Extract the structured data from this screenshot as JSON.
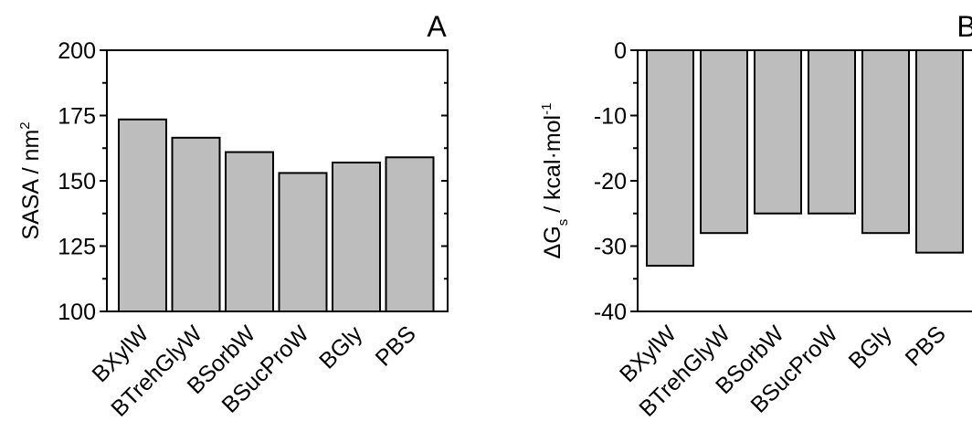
{
  "chart_data": [
    {
      "type": "bar",
      "panel_label": "A",
      "categories": [
        "BXylW",
        "BTrehGlyW",
        "BSorbW",
        "BSucProW",
        "BGly",
        "PBS"
      ],
      "values": [
        173.5,
        166.5,
        161,
        153,
        157,
        159
      ],
      "ylabel": "SASA / nm",
      "ylabel_superscript": "2",
      "ylim": [
        100,
        200
      ],
      "yticks": [
        "100",
        "125",
        "150",
        "175",
        "200"
      ],
      "bar_color": "#bdbdbd",
      "grid": false
    },
    {
      "type": "bar",
      "panel_label": "B",
      "categories": [
        "BXylW",
        "BTrehGlyW",
        "BSorbW",
        "BSucProW",
        "BGly",
        "PBS"
      ],
      "values": [
        -33,
        -28,
        -25,
        -25,
        -28,
        -31
      ],
      "ylabel_delta": "ΔG",
      "ylabel_subscript": "s",
      "ylabel_rest": " / kcal·mol",
      "ylabel_superscript": "-1",
      "ylim": [
        -40,
        0
      ],
      "yticks": [
        "0",
        "-10",
        "-20",
        "-30",
        "-40"
      ],
      "bar_color": "#bdbdbd",
      "grid": false
    }
  ]
}
